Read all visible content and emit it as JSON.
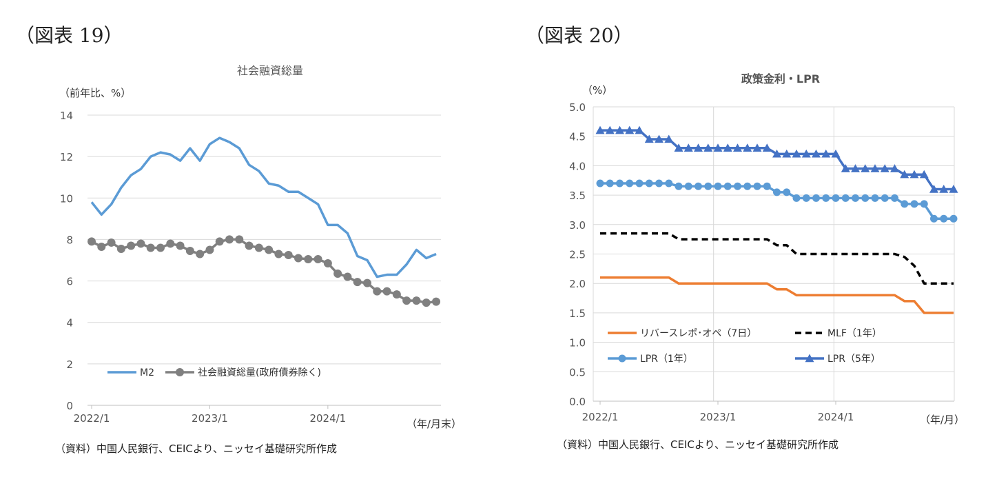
{
  "left_figure": {
    "label": "（図表 19）",
    "source": "（資料）中国人民銀行、CEICより、ニッセイ基礎研究所作成"
  },
  "right_figure": {
    "label": "（図表 20）",
    "source": "（資料）中国人民銀行、CEICより、ニッセイ基礎研究所作成"
  },
  "chart_data": [
    {
      "type": "line",
      "title": "社会融資総量",
      "ylabel": "（前年比、%）",
      "xlabel": "（年/月末）",
      "ylim": [
        0,
        14
      ],
      "yticks": [
        "0",
        "2",
        "4",
        "6",
        "8",
        "10",
        "12",
        "14"
      ],
      "xtick_labels": [
        "2022/1",
        "2023/1",
        "2024/1"
      ],
      "xtick_indices": [
        0,
        12,
        24
      ],
      "n_points": 36,
      "grid": "horizontal",
      "legend_position": "bottom-left",
      "series": [
        {
          "name": "M2",
          "color": "#5B9BD5",
          "marker": "none",
          "values": [
            9.8,
            9.2,
            9.7,
            10.5,
            11.1,
            11.4,
            12.0,
            12.2,
            12.1,
            11.8,
            12.4,
            11.8,
            12.6,
            12.9,
            12.7,
            12.4,
            11.6,
            11.3,
            10.7,
            10.6,
            10.3,
            10.3,
            10.0,
            9.7,
            8.7,
            8.7,
            8.3,
            7.2,
            7.0,
            6.2,
            6.3,
            6.3,
            6.8,
            7.5,
            7.1,
            7.3
          ]
        },
        {
          "name": "社会融資総量(政府債券除く)",
          "color": "#808080",
          "marker": "circle",
          "values": [
            7.9,
            7.65,
            7.85,
            7.55,
            7.7,
            7.8,
            7.6,
            7.6,
            7.8,
            7.7,
            7.45,
            7.3,
            7.5,
            7.9,
            8.0,
            8.0,
            7.7,
            7.6,
            7.5,
            7.3,
            7.25,
            7.1,
            7.05,
            7.05,
            6.85,
            6.35,
            6.2,
            5.95,
            5.9,
            5.5,
            5.5,
            5.35,
            5.05,
            5.05,
            4.95,
            5.0
          ]
        }
      ]
    },
    {
      "type": "line",
      "title": "政策金利・LPR",
      "ylabel": "（%）",
      "xlabel": "（年/月）",
      "ylim": [
        0,
        5
      ],
      "yticks": [
        "0.0",
        "0.5",
        "1.0",
        "1.5",
        "2.0",
        "2.5",
        "3.0",
        "3.5",
        "4.0",
        "4.5",
        "5.0"
      ],
      "xtick_labels": [
        "2022/1",
        "2023/1",
        "2024/1"
      ],
      "xtick_indices": [
        0,
        12,
        24
      ],
      "n_points": 37,
      "grid": "both",
      "legend_position": "bottom-left",
      "series": [
        {
          "name": "リバースレポ･オペ（7日）",
          "color": "#ED7D31",
          "marker": "none",
          "dash": "solid",
          "values": [
            2.1,
            2.1,
            2.1,
            2.1,
            2.1,
            2.1,
            2.1,
            2.1,
            2.0,
            2.0,
            2.0,
            2.0,
            2.0,
            2.0,
            2.0,
            2.0,
            2.0,
            2.0,
            1.9,
            1.9,
            1.8,
            1.8,
            1.8,
            1.8,
            1.8,
            1.8,
            1.8,
            1.8,
            1.8,
            1.8,
            1.8,
            1.7,
            1.7,
            1.5,
            1.5,
            1.5,
            1.5
          ]
        },
        {
          "name": "MLF（1年）",
          "color": "#000000",
          "marker": "none",
          "dash": "dashed",
          "values": [
            2.85,
            2.85,
            2.85,
            2.85,
            2.85,
            2.85,
            2.85,
            2.85,
            2.75,
            2.75,
            2.75,
            2.75,
            2.75,
            2.75,
            2.75,
            2.75,
            2.75,
            2.75,
            2.65,
            2.65,
            2.5,
            2.5,
            2.5,
            2.5,
            2.5,
            2.5,
            2.5,
            2.5,
            2.5,
            2.5,
            2.5,
            2.45,
            2.3,
            2.0,
            2.0,
            2.0,
            2.0
          ]
        },
        {
          "name": "LPR（1年）",
          "color": "#5B9BD5",
          "marker": "circle",
          "dash": "solid",
          "values": [
            3.7,
            3.7,
            3.7,
            3.7,
            3.7,
            3.7,
            3.7,
            3.7,
            3.65,
            3.65,
            3.65,
            3.65,
            3.65,
            3.65,
            3.65,
            3.65,
            3.65,
            3.65,
            3.55,
            3.55,
            3.45,
            3.45,
            3.45,
            3.45,
            3.45,
            3.45,
            3.45,
            3.45,
            3.45,
            3.45,
            3.45,
            3.35,
            3.35,
            3.35,
            3.1,
            3.1,
            3.1
          ]
        },
        {
          "name": "LPR（5年）",
          "color": "#4472C4",
          "marker": "triangle",
          "dash": "solid",
          "values": [
            4.6,
            4.6,
            4.6,
            4.6,
            4.6,
            4.45,
            4.45,
            4.45,
            4.3,
            4.3,
            4.3,
            4.3,
            4.3,
            4.3,
            4.3,
            4.3,
            4.3,
            4.3,
            4.2,
            4.2,
            4.2,
            4.2,
            4.2,
            4.2,
            4.2,
            3.95,
            3.95,
            3.95,
            3.95,
            3.95,
            3.95,
            3.85,
            3.85,
            3.85,
            3.6,
            3.6,
            3.6
          ]
        }
      ]
    }
  ]
}
